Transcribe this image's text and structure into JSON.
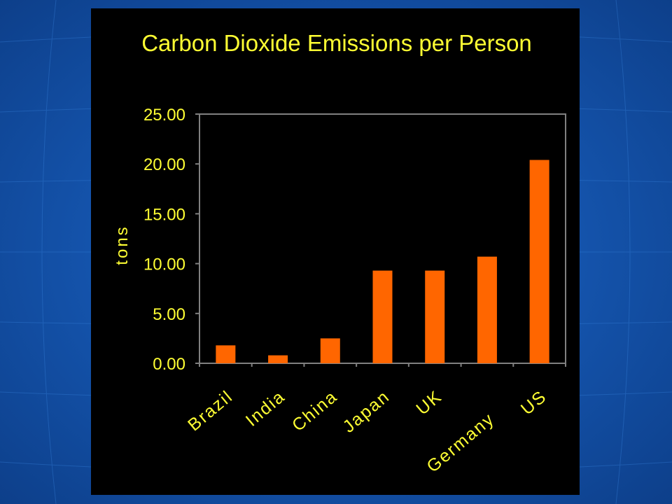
{
  "colors": {
    "background": "#1556b0",
    "panel": "#000000",
    "text": "#ffff33",
    "bar": "#ff6600",
    "axis": "#808080"
  },
  "chart_data": {
    "type": "bar",
    "title": "Carbon Dioxide Emissions per Person",
    "xlabel": "",
    "ylabel": "tons",
    "categories": [
      "Brazil",
      "India",
      "China",
      "Japan",
      "UK",
      "Germany",
      "US"
    ],
    "values": [
      1.8,
      0.8,
      2.5,
      9.3,
      9.3,
      10.7,
      20.4
    ],
    "ylim": [
      0,
      25
    ],
    "yticks": [
      "0.00",
      "5.00",
      "10.00",
      "15.00",
      "20.00",
      "25.00"
    ],
    "grid": false,
    "legend": "none"
  }
}
